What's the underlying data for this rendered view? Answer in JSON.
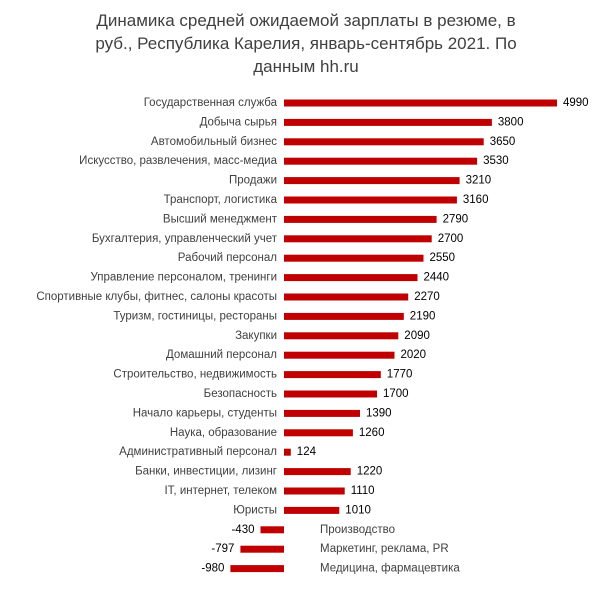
{
  "chart_data": {
    "type": "bar",
    "orientation": "horizontal",
    "title": "Динамика средней ожидаемой зарплаты в резюме, в руб., Республика Карелия, январь-сентябрь 2021. По данным hh.ru",
    "title_lines": [
      "Динамика средней ожидаемой зарплаты в резюме, в",
      "руб., Республика Карелия, январь-сентябрь 2021. По",
      "данным hh.ru"
    ],
    "xlabel": "",
    "ylabel": "",
    "xlim": [
      -1000,
      5000
    ],
    "grid": false,
    "legend": "none",
    "bar_color": "#c00000",
    "categories": [
      "Государственная служба",
      "Добыча сырья",
      "Автомобильный бизнес",
      "Искусство, развлечения, масс-медиа",
      "Продажи",
      "Транспорт, логистика",
      "Высший менеджмент",
      "Бухгалтерия, управленческий учет",
      "Рабочий персонал",
      "Управление персоналом, тренинги",
      "Спортивные клубы, фитнес, салоны красоты",
      "Туризм, гостиницы, рестораны",
      "Закупки",
      "Домашний персонал",
      "Строительство, недвижимость",
      "Безопасность",
      "Начало карьеры, студенты",
      "Наука, образование",
      "Административный персонал",
      "Банки, инвестиции, лизинг",
      "IT, интернет, телеком",
      "Юристы",
      "Производство",
      "Маркетинг, реклама, PR",
      "Медицина, фармацевтика"
    ],
    "values": [
      4990,
      3800,
      3650,
      3530,
      3210,
      3160,
      2790,
      2700,
      2550,
      2440,
      2270,
      2190,
      2090,
      2020,
      1770,
      1700,
      1390,
      1260,
      124,
      1220,
      1110,
      1010,
      -430,
      -797,
      -980
    ],
    "value_labels": [
      "4990",
      "3800",
      "3650",
      "3530",
      "3210",
      "3160",
      "2790",
      "2700",
      "2550",
      "2440",
      "2270",
      "2190",
      "2090",
      "2020",
      "1770",
      "1700",
      "1390",
      "1260",
      "124",
      "1220",
      "1110",
      "1010",
      "-430",
      "-797",
      "-980"
    ]
  }
}
